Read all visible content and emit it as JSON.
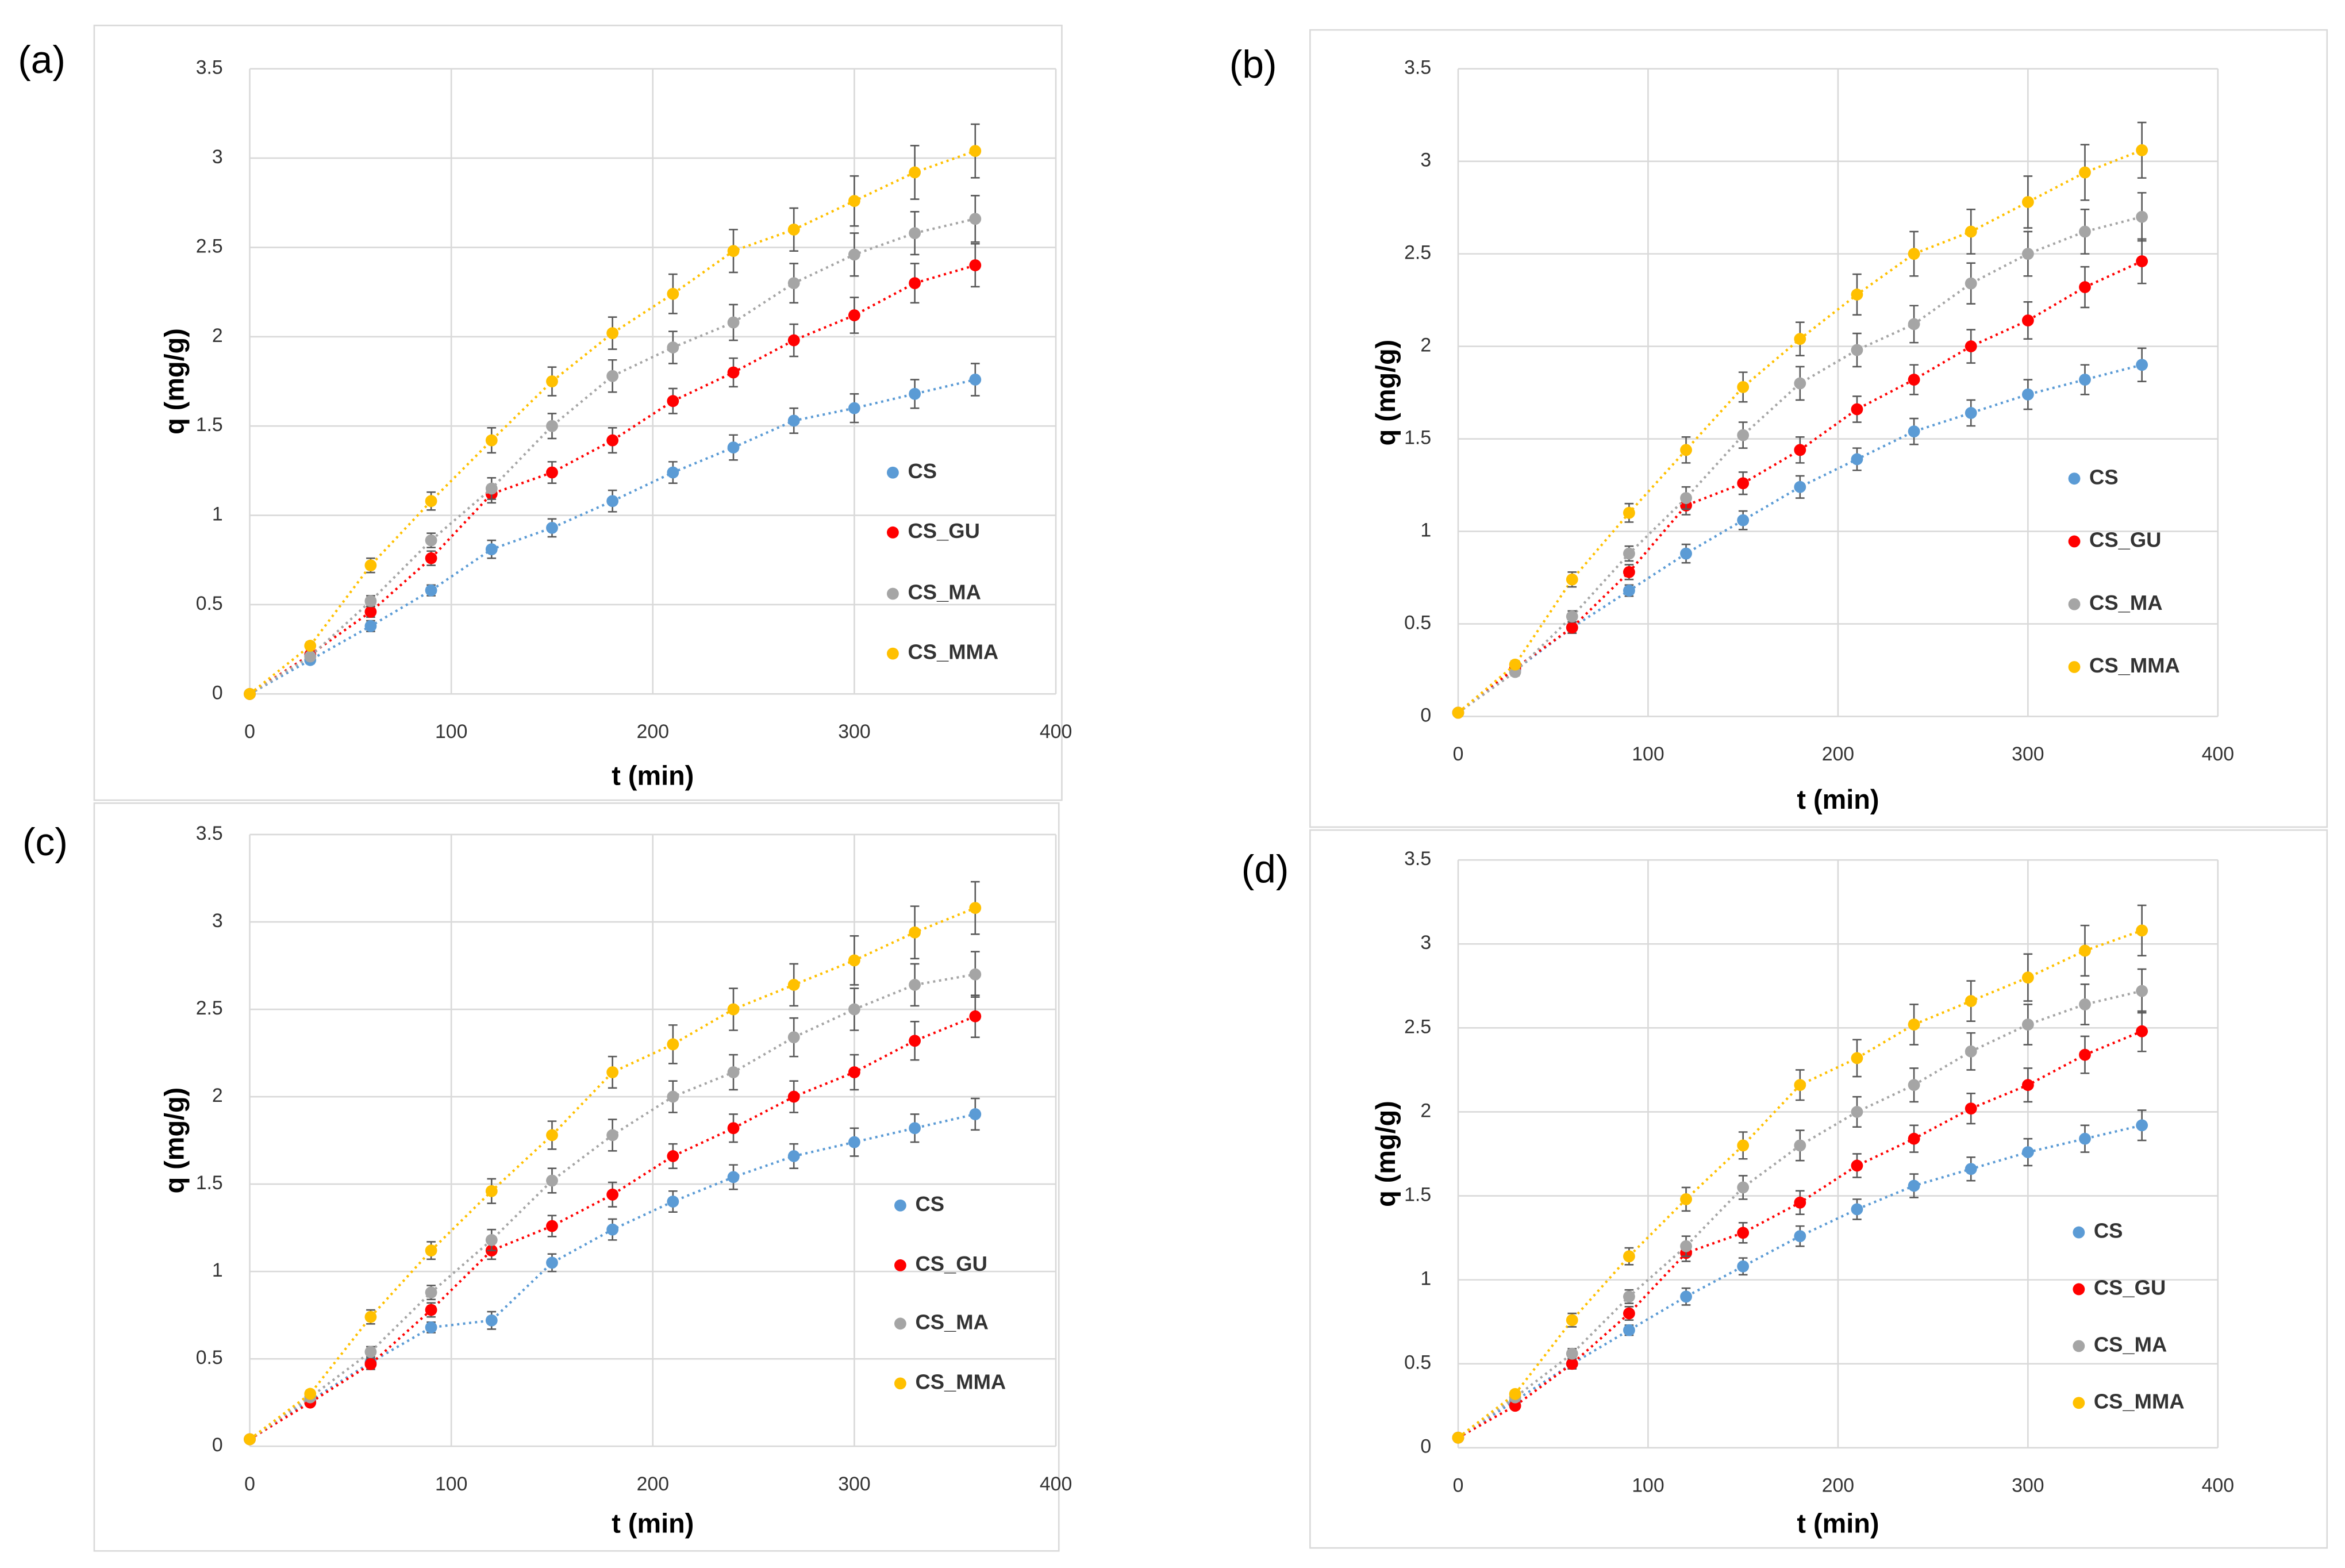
{
  "chart_data": [
    {
      "label": "(a)",
      "type": "scatter",
      "xlabel": "t (min)",
      "ylabel": "q (mg/g)",
      "x": [
        0,
        30,
        60,
        90,
        120,
        150,
        180,
        210,
        240,
        270,
        300,
        330,
        360
      ],
      "xlim": [
        0,
        400
      ],
      "ylim": [
        0,
        3.5
      ],
      "xticks": [
        0,
        100,
        200,
        300,
        400
      ],
      "yticks": [
        0,
        0.5,
        1,
        1.5,
        2,
        2.5,
        3,
        3.5
      ],
      "grid": true,
      "trendline": true,
      "series": [
        {
          "name": "CS",
          "color": "#5b9bd5",
          "values": [
            0,
            0.19,
            0.38,
            0.58,
            0.81,
            0.93,
            1.08,
            1.24,
            1.38,
            1.53,
            1.6,
            1.68,
            1.76
          ],
          "errors": [
            0,
            0.02,
            0.03,
            0.03,
            0.05,
            0.05,
            0.06,
            0.06,
            0.07,
            0.07,
            0.08,
            0.08,
            0.09
          ]
        },
        {
          "name": "CS_GU",
          "color": "#ff0000",
          "values": [
            0,
            0.22,
            0.46,
            0.76,
            1.12,
            1.24,
            1.42,
            1.64,
            1.8,
            1.98,
            2.12,
            2.3,
            2.4
          ],
          "errors": [
            0,
            0.02,
            0.03,
            0.04,
            0.05,
            0.06,
            0.07,
            0.07,
            0.08,
            0.09,
            0.1,
            0.11,
            0.12
          ]
        },
        {
          "name": "CS_MA",
          "color": "#a5a5a5",
          "values": [
            0,
            0.21,
            0.52,
            0.86,
            1.15,
            1.5,
            1.78,
            1.94,
            2.08,
            2.3,
            2.46,
            2.58,
            2.66
          ],
          "errors": [
            0,
            0.02,
            0.03,
            0.04,
            0.06,
            0.07,
            0.09,
            0.09,
            0.1,
            0.11,
            0.12,
            0.12,
            0.13
          ]
        },
        {
          "name": "CS_MMA",
          "color": "#ffc000",
          "values": [
            0,
            0.27,
            0.72,
            1.08,
            1.42,
            1.75,
            2.02,
            2.24,
            2.48,
            2.6,
            2.76,
            2.92,
            3.04
          ],
          "errors": [
            0,
            0.02,
            0.04,
            0.05,
            0.07,
            0.08,
            0.09,
            0.11,
            0.12,
            0.12,
            0.14,
            0.15,
            0.15
          ]
        }
      ]
    },
    {
      "label": "(b)",
      "type": "scatter",
      "xlabel": "t (min)",
      "ylabel": "q (mg/g)",
      "x": [
        0,
        30,
        60,
        90,
        120,
        150,
        180,
        210,
        240,
        270,
        300,
        330,
        360
      ],
      "xlim": [
        0,
        400
      ],
      "ylim": [
        0,
        3.5
      ],
      "xticks": [
        0,
        100,
        200,
        300,
        400
      ],
      "yticks": [
        0,
        0.5,
        1,
        1.5,
        2,
        2.5,
        3,
        3.5
      ],
      "grid": true,
      "trendline": true,
      "series": [
        {
          "name": "CS",
          "color": "#5b9bd5",
          "values": [
            0.02,
            0.25,
            0.48,
            0.68,
            0.88,
            1.06,
            1.24,
            1.39,
            1.54,
            1.64,
            1.74,
            1.82,
            1.9
          ],
          "errors": [
            0,
            0.02,
            0.03,
            0.03,
            0.05,
            0.05,
            0.06,
            0.06,
            0.07,
            0.07,
            0.08,
            0.08,
            0.09
          ]
        },
        {
          "name": "CS_GU",
          "color": "#ff0000",
          "values": [
            0.02,
            0.26,
            0.48,
            0.78,
            1.14,
            1.26,
            1.44,
            1.66,
            1.82,
            2,
            2.14,
            2.32,
            2.46
          ],
          "errors": [
            0,
            0.02,
            0.03,
            0.04,
            0.05,
            0.06,
            0.07,
            0.07,
            0.08,
            0.09,
            0.1,
            0.11,
            0.12
          ]
        },
        {
          "name": "CS_MA",
          "color": "#a5a5a5",
          "values": [
            0.02,
            0.24,
            0.54,
            0.88,
            1.18,
            1.52,
            1.8,
            1.98,
            2.12,
            2.34,
            2.5,
            2.62,
            2.7
          ],
          "errors": [
            0,
            0.02,
            0.03,
            0.04,
            0.06,
            0.07,
            0.09,
            0.09,
            0.1,
            0.11,
            0.12,
            0.12,
            0.13
          ]
        },
        {
          "name": "CS_MMA",
          "color": "#ffc000",
          "values": [
            0.02,
            0.28,
            0.74,
            1.1,
            1.44,
            1.78,
            2.04,
            2.28,
            2.5,
            2.62,
            2.78,
            2.94,
            3.06
          ],
          "errors": [
            0,
            0.02,
            0.04,
            0.05,
            0.07,
            0.08,
            0.09,
            0.11,
            0.12,
            0.12,
            0.14,
            0.15,
            0.15
          ]
        }
      ]
    },
    {
      "label": "(c)",
      "type": "scatter",
      "xlabel": "t (min)",
      "ylabel": "q (mg/g)",
      "x": [
        0,
        30,
        60,
        90,
        120,
        150,
        180,
        210,
        240,
        270,
        300,
        330,
        360
      ],
      "xlim": [
        0,
        400
      ],
      "ylim": [
        0,
        3.5
      ],
      "xticks": [
        0,
        100,
        200,
        300,
        400
      ],
      "yticks": [
        0,
        0.5,
        1,
        1.5,
        2,
        2.5,
        3,
        3.5
      ],
      "grid": true,
      "trendline": true,
      "series": [
        {
          "name": "CS",
          "color": "#5b9bd5",
          "values": [
            0.04,
            0.26,
            0.48,
            0.68,
            0.72,
            1.05,
            1.24,
            1.4,
            1.54,
            1.66,
            1.74,
            1.82,
            1.9
          ],
          "errors": [
            0,
            0.02,
            0.03,
            0.03,
            0.05,
            0.05,
            0.06,
            0.06,
            0.07,
            0.07,
            0.08,
            0.08,
            0.09
          ]
        },
        {
          "name": "CS_GU",
          "color": "#ff0000",
          "values": [
            0.04,
            0.25,
            0.47,
            0.78,
            1.12,
            1.26,
            1.44,
            1.66,
            1.82,
            2,
            2.14,
            2.32,
            2.46
          ],
          "errors": [
            0,
            0.02,
            0.03,
            0.04,
            0.05,
            0.06,
            0.07,
            0.07,
            0.08,
            0.09,
            0.1,
            0.11,
            0.12
          ]
        },
        {
          "name": "CS_MA",
          "color": "#a5a5a5",
          "values": [
            0.04,
            0.28,
            0.54,
            0.88,
            1.18,
            1.52,
            1.78,
            2,
            2.14,
            2.34,
            2.5,
            2.64,
            2.7
          ],
          "errors": [
            0,
            0.02,
            0.03,
            0.04,
            0.06,
            0.07,
            0.09,
            0.09,
            0.1,
            0.11,
            0.12,
            0.12,
            0.13
          ]
        },
        {
          "name": "CS_MMA",
          "color": "#ffc000",
          "values": [
            0.04,
            0.3,
            0.74,
            1.12,
            1.46,
            1.78,
            2.14,
            2.3,
            2.5,
            2.64,
            2.78,
            2.94,
            3.08
          ],
          "errors": [
            0,
            0.02,
            0.04,
            0.05,
            0.07,
            0.08,
            0.09,
            0.11,
            0.12,
            0.12,
            0.14,
            0.15,
            0.15
          ]
        }
      ]
    },
    {
      "label": "(d)",
      "type": "scatter",
      "xlabel": "t (min)",
      "ylabel": "q (mg/g)",
      "x": [
        0,
        30,
        60,
        90,
        120,
        150,
        180,
        210,
        240,
        270,
        300,
        330,
        360
      ],
      "xlim": [
        0,
        400
      ],
      "ylim": [
        0,
        3.5
      ],
      "xticks": [
        0,
        100,
        200,
        300,
        400
      ],
      "yticks": [
        0,
        0.5,
        1,
        1.5,
        2,
        2.5,
        3,
        3.5
      ],
      "grid": true,
      "trendline": true,
      "series": [
        {
          "name": "CS",
          "color": "#5b9bd5",
          "values": [
            0.06,
            0.28,
            0.5,
            0.7,
            0.9,
            1.08,
            1.26,
            1.42,
            1.56,
            1.66,
            1.76,
            1.84,
            1.92
          ],
          "errors": [
            0,
            0.02,
            0.03,
            0.03,
            0.05,
            0.05,
            0.06,
            0.06,
            0.07,
            0.07,
            0.08,
            0.08,
            0.09
          ]
        },
        {
          "name": "CS_GU",
          "color": "#ff0000",
          "values": [
            0.06,
            0.25,
            0.5,
            0.8,
            1.16,
            1.28,
            1.46,
            1.68,
            1.84,
            2.02,
            2.16,
            2.34,
            2.48
          ],
          "errors": [
            0,
            0.02,
            0.03,
            0.04,
            0.05,
            0.06,
            0.07,
            0.07,
            0.08,
            0.09,
            0.1,
            0.11,
            0.12
          ]
        },
        {
          "name": "CS_MA",
          "color": "#a5a5a5",
          "values": [
            0.06,
            0.3,
            0.56,
            0.9,
            1.2,
            1.55,
            1.8,
            2,
            2.16,
            2.36,
            2.52,
            2.64,
            2.72
          ],
          "errors": [
            0,
            0.02,
            0.03,
            0.04,
            0.06,
            0.07,
            0.09,
            0.09,
            0.1,
            0.11,
            0.12,
            0.12,
            0.13
          ]
        },
        {
          "name": "CS_MMA",
          "color": "#ffc000",
          "values": [
            0.06,
            0.32,
            0.76,
            1.14,
            1.48,
            1.8,
            2.16,
            2.32,
            2.52,
            2.66,
            2.8,
            2.96,
            3.08
          ],
          "errors": [
            0,
            0.02,
            0.04,
            0.05,
            0.07,
            0.08,
            0.09,
            0.11,
            0.12,
            0.12,
            0.14,
            0.15,
            0.15
          ]
        }
      ]
    }
  ]
}
